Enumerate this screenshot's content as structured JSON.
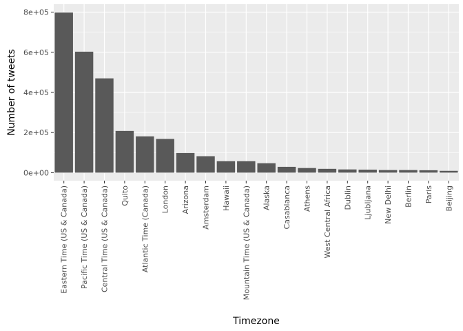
{
  "chart_data": {
    "type": "bar",
    "title": "",
    "xlabel": "Timezone",
    "ylabel": "Number of tweets",
    "categories": [
      "Eastern Time (US & Canada)",
      "Pacific Time (US & Canada)",
      "Central Time (US & Canada)",
      "Quito",
      "Atlantic Time (Canada)",
      "London",
      "Arizona",
      "Amsterdam",
      "Hawaii",
      "Mountain Time (US & Canada)",
      "Alaska",
      "Casablanca",
      "Athens",
      "West Central Africa",
      "Dublin",
      "Ljubljana",
      "New Delhi",
      "Berlin",
      "Paris",
      "Beijing"
    ],
    "values": [
      798000,
      603000,
      470000,
      208000,
      181000,
      168000,
      98000,
      82000,
      57000,
      57000,
      47000,
      29000,
      23000,
      19000,
      16000,
      15000,
      13000,
      13000,
      12000,
      9000
    ],
    "ylim": [
      -40000,
      840000
    ],
    "yticks": [
      0,
      200000,
      400000,
      600000,
      800000
    ],
    "ytick_labels": [
      "0e+00",
      "2e+05",
      "4e+05",
      "6e+05",
      "8e+05"
    ],
    "grid": true,
    "legend": "none",
    "colors": {
      "bar": "#595959",
      "panel_background": "#ebebeb",
      "grid_major": "#ffffff",
      "tick_mark": "#333333"
    }
  }
}
